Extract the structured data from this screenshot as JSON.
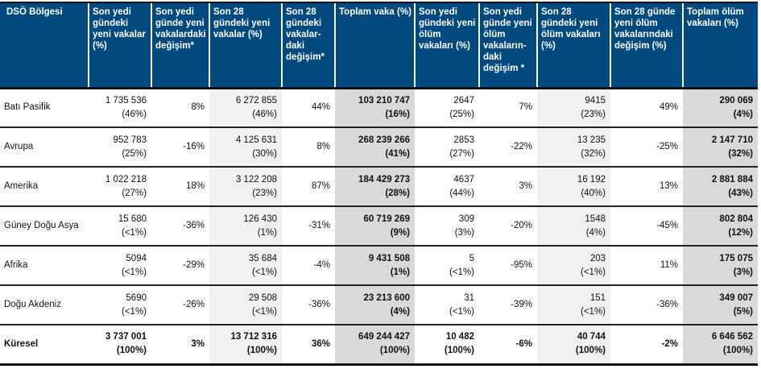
{
  "headers": [
    "DSÖ Bölgesi",
    "Son yedi gündeki yeni vakalar (%)",
    "Son yedi günde yeni vakalardaki değişim*",
    "Son 28 gündeki yeni vakalar (%)",
    "Son 28 gündeki vakalar-daki değişim*",
    "Toplam vaka (%)",
    "Son yedi gündeki yeni ölüm vakaları (%)",
    "Son yedi günde yeni ölüm vakaların-daki değişim *",
    "Son 28 gündeki yeni ölüm vakaları (%)",
    "Son 28 günde yeni ölüm vakalarındaki değişim (%)",
    "Toplam ölüm vakaları  (%)"
  ],
  "rows": [
    {
      "region": "Batı Pasifik",
      "cells": [
        [
          "1 735 536",
          "(46%)"
        ],
        [
          "8%"
        ],
        [
          "6 272 855",
          "(46%)"
        ],
        [
          "44%"
        ],
        [
          "103 210 747",
          "(16%)"
        ],
        [
          "2647",
          "(25%)"
        ],
        [
          "7%"
        ],
        [
          "9415",
          "(23%)"
        ],
        [
          "49%"
        ],
        [
          "290 069",
          "(4%)"
        ]
      ]
    },
    {
      "region": "Avrupa",
      "cells": [
        [
          "952 783",
          "(25%)"
        ],
        [
          "-16%"
        ],
        [
          "4 125 631",
          "(30%)"
        ],
        [
          "8%"
        ],
        [
          "268 239 266",
          "(41%)"
        ],
        [
          "2853",
          "(27%)"
        ],
        [
          "-22%"
        ],
        [
          "13 235",
          "(32%)"
        ],
        [
          "-25%"
        ],
        [
          "2 147 710",
          "(32%)"
        ]
      ]
    },
    {
      "region": "Amerika",
      "cells": [
        [
          "1 022 218",
          "(27%)"
        ],
        [
          "18%"
        ],
        [
          "3 122 208",
          "(23%)"
        ],
        [
          "87%"
        ],
        [
          "184 429 273",
          "(28%)"
        ],
        [
          "4637",
          "(44%)"
        ],
        [
          "3%"
        ],
        [
          "16 192",
          "(40%)"
        ],
        [
          "13%"
        ],
        [
          "2 881 884",
          "(43%)"
        ]
      ]
    },
    {
      "region": "Güney Doğu Asya",
      "cells": [
        [
          "15 680",
          "(<1%)"
        ],
        [
          "-36%"
        ],
        [
          "126 430",
          "(1%)"
        ],
        [
          "-31%"
        ],
        [
          "60 719 269",
          "(9%)"
        ],
        [
          "309",
          "(3%)"
        ],
        [
          "-20%"
        ],
        [
          "1548",
          "(4%)"
        ],
        [
          "-45%"
        ],
        [
          "802 804",
          "(12%)"
        ]
      ]
    },
    {
      "region": "Afrika",
      "cells": [
        [
          "5094",
          "(<1%)"
        ],
        [
          "-29%"
        ],
        [
          "35 684",
          "(<1%)"
        ],
        [
          "-4%"
        ],
        [
          "9 431 508",
          "(1%)"
        ],
        [
          "5",
          "(<1%)"
        ],
        [
          "-95%"
        ],
        [
          "203",
          "(<1%)"
        ],
        [
          "11%"
        ],
        [
          "175 075",
          "(3%)"
        ]
      ]
    },
    {
      "region": "Doğu Akdeniz",
      "cells": [
        [
          "5690",
          "(<1%)"
        ],
        [
          "-26%"
        ],
        [
          "29 508",
          "(<1%)"
        ],
        [
          "-36%"
        ],
        [
          "23 213 600",
          "(4%)"
        ],
        [
          "31",
          "(<1%)"
        ],
        [
          "-39%"
        ],
        [
          "151",
          "(<1%)"
        ],
        [
          "-36%"
        ],
        [
          "349 007",
          "(5%)"
        ]
      ]
    },
    {
      "region": "Küresel",
      "total": true,
      "cells": [
        [
          "3 737 001",
          "(100%)"
        ],
        [
          "3%"
        ],
        [
          "13 712 316",
          "(100%)"
        ],
        [
          "36%"
        ],
        [
          "649 244 427",
          "(100%)"
        ],
        [
          "10 482",
          "(100%)"
        ],
        [
          "-6%"
        ],
        [
          "40 744",
          "(100%)"
        ],
        [
          "-2%"
        ],
        [
          "6 646 562",
          "(100%)"
        ]
      ]
    }
  ]
}
